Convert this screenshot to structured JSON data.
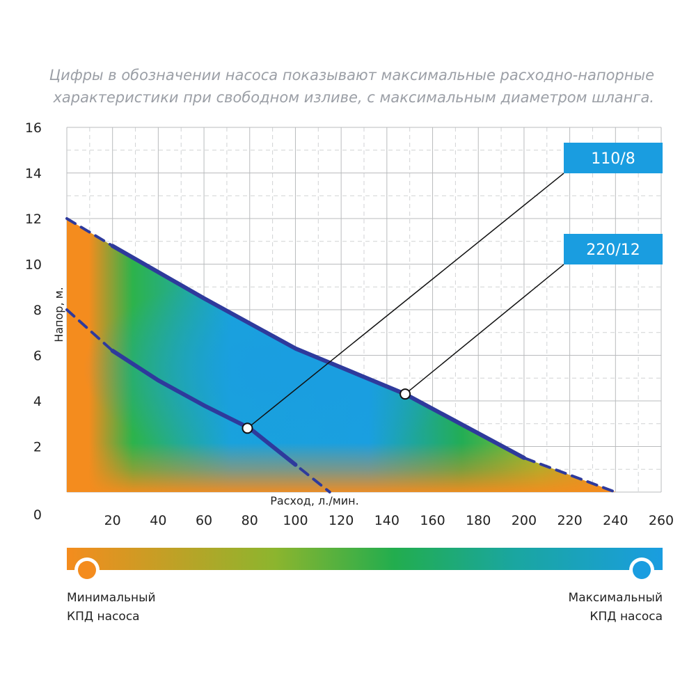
{
  "caption": {
    "line1": "Цифры в обозначении насоса показывают максимальные расходно-напорные",
    "line2": "характеристики при свободном изливе, с максимальным диаметром шланга."
  },
  "chart_data": {
    "type": "line",
    "title": "",
    "xlabel": "Расход, л./мин.",
    "ylabel": "Напор, м.",
    "xlim": [
      0,
      260
    ],
    "ylim": [
      0,
      16
    ],
    "x_ticks": [
      "20",
      "40",
      "60",
      "80",
      "100",
      "120",
      "140",
      "160",
      "180",
      "200",
      "220",
      "240",
      "260"
    ],
    "y_ticks": [
      "0",
      "2",
      "4",
      "6",
      "8",
      "10",
      "12",
      "14",
      "16"
    ],
    "grid": true,
    "series": [
      {
        "name": "110/8",
        "x": [
          0,
          20,
          40,
          60,
          80,
          100,
          115
        ],
        "y": [
          8.0,
          6.2,
          4.9,
          3.8,
          2.8,
          1.2,
          0
        ],
        "marker": {
          "x": 79,
          "y": 2.8
        }
      },
      {
        "name": "220/12",
        "x": [
          0,
          20,
          60,
          100,
          148,
          200,
          240
        ],
        "y": [
          12.0,
          10.8,
          8.5,
          6.3,
          4.3,
          1.5,
          0
        ],
        "marker": {
          "x": 148,
          "y": 4.3
        }
      }
    ],
    "colors": {
      "min_efficiency": "#f48c1e",
      "mid_efficiency": "#22ad4e",
      "max_efficiency": "#1a9de0",
      "curve": "#2e3a9c",
      "grid_dashed": "#d0d2d4",
      "grid_solid": "#b9bbbd"
    }
  },
  "legend": {
    "min_label_line1": "Минимальный",
    "min_label_line2": "КПД насоса",
    "max_label_line1": "Максимальный",
    "max_label_line2": "КПД насоса"
  }
}
